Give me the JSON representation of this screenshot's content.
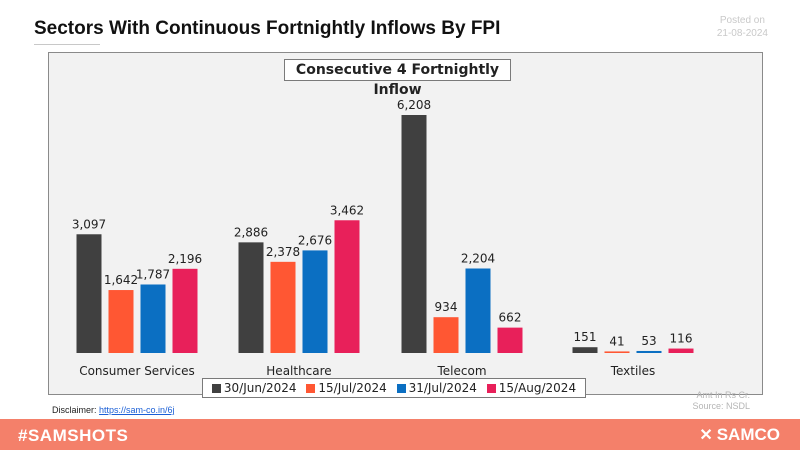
{
  "header": {
    "title": "Sectors With Continuous Fortnightly Inflows By FPI",
    "posted_label": "Posted on",
    "posted_date": "21-08-2024"
  },
  "chart_data": {
    "type": "bar",
    "title": "Consecutive 4 Fortnightly Inflow",
    "categories": [
      "Consumer Services",
      "Healthcare",
      "Telecom",
      "Textiles"
    ],
    "series": [
      {
        "name": "30/Jun/2024",
        "color": "#404040",
        "values": [
          3097,
          2886,
          6208,
          151
        ]
      },
      {
        "name": "15/Jul/2024",
        "color": "#ff5733",
        "values": [
          1642,
          2378,
          934,
          41
        ]
      },
      {
        "name": "31/Jul/2024",
        "color": "#0b6fc2",
        "values": [
          1787,
          2676,
          2204,
          53
        ]
      },
      {
        "name": "15/Aug/2024",
        "color": "#e8205a",
        "values": [
          2196,
          3462,
          662,
          116
        ]
      }
    ],
    "ylim": [
      0,
      6208
    ],
    "grid": false,
    "legend": "bottom-center",
    "xlabel": "",
    "ylabel": ""
  },
  "notes": {
    "unit": "Amt In Rs Cr.",
    "source": "Source: NSDL"
  },
  "disclaimer": {
    "label": "Disclaimer:",
    "link": "https://sam-co.in/6j"
  },
  "footer": {
    "hashtag": "#SAMSHOTS",
    "brand": "SAMCO",
    "brand_icon": "samco-logo-icon"
  }
}
